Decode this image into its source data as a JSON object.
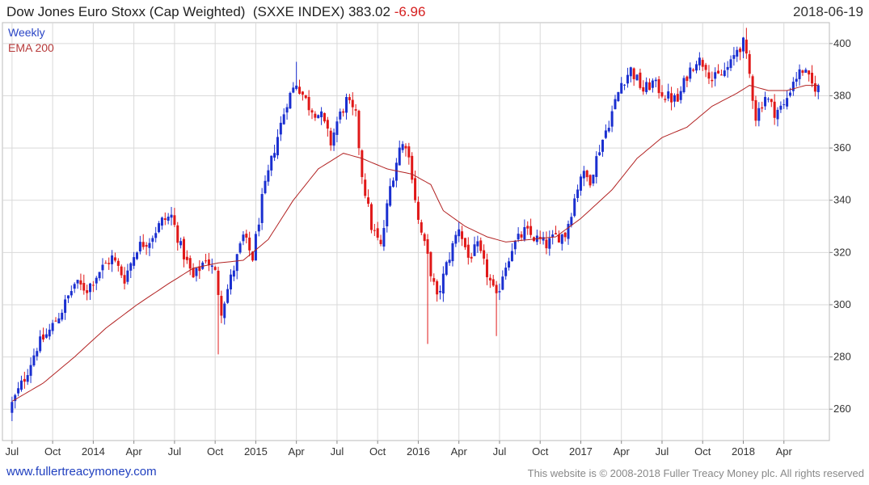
{
  "header": {
    "title": "Dow Jones Euro Stoxx (Cap Weighted)  (SXXE INDEX) 383.02",
    "change": "-6.96",
    "date": "2018-06-19"
  },
  "footer": {
    "site": "www.fullertreacymoney.com",
    "copyright": "This website is © 2008-2018 Fuller Treacy Money plc. All rights reserved"
  },
  "colors": {
    "up": "#1a2fd0",
    "down": "#e01818",
    "ema": "#b22222",
    "grid": "#d9d9d9"
  },
  "chart_data": {
    "type": "line",
    "title": "Dow Jones Euro Stoxx (Cap Weighted)  (SXXE INDEX) 383.02",
    "legend": [
      "Weekly",
      "EMA 200"
    ],
    "legend_position": "top-left",
    "ylim": [
      248,
      408
    ],
    "yticks": [
      260,
      280,
      300,
      320,
      340,
      360,
      380,
      400
    ],
    "grid": true,
    "xlabels": [
      {
        "label": "Jul",
        "week": 0
      },
      {
        "label": "Oct",
        "week": 13
      },
      {
        "label": "2014",
        "week": 26
      },
      {
        "label": "Apr",
        "week": 39
      },
      {
        "label": "Jul",
        "week": 52
      },
      {
        "label": "Oct",
        "week": 65
      },
      {
        "label": "2015",
        "week": 78
      },
      {
        "label": "Apr",
        "week": 91
      },
      {
        "label": "Jul",
        "week": 104
      },
      {
        "label": "Oct",
        "week": 117
      },
      {
        "label": "2016",
        "week": 130
      },
      {
        "label": "Apr",
        "week": 143
      },
      {
        "label": "Jul",
        "week": 156
      },
      {
        "label": "Oct",
        "week": 169
      },
      {
        "label": "2017",
        "week": 182
      },
      {
        "label": "Apr",
        "week": 195
      },
      {
        "label": "Jul",
        "week": 208
      },
      {
        "label": "Oct",
        "week": 221
      },
      {
        "label": "2018",
        "week": 234
      },
      {
        "label": "Apr",
        "week": 247
      }
    ],
    "x_range_weeks": [
      -1,
      260
    ],
    "close_anchors": [
      [
        0,
        262
      ],
      [
        4,
        272
      ],
      [
        8,
        284
      ],
      [
        12,
        290
      ],
      [
        16,
        298
      ],
      [
        20,
        308
      ],
      [
        24,
        306
      ],
      [
        28,
        313
      ],
      [
        32,
        318
      ],
      [
        36,
        310
      ],
      [
        40,
        322
      ],
      [
        44,
        325
      ],
      [
        48,
        332
      ],
      [
        51,
        334
      ],
      [
        54,
        322
      ],
      [
        58,
        310
      ],
      [
        62,
        318
      ],
      [
        65,
        312
      ],
      [
        67,
        298
      ],
      [
        70,
        310
      ],
      [
        74,
        326
      ],
      [
        77,
        318
      ],
      [
        80,
        340
      ],
      [
        84,
        360
      ],
      [
        88,
        378
      ],
      [
        91,
        385
      ],
      [
        95,
        376
      ],
      [
        99,
        372
      ],
      [
        102,
        362
      ],
      [
        104,
        370
      ],
      [
        107,
        378
      ],
      [
        110,
        372
      ],
      [
        112,
        350
      ],
      [
        115,
        330
      ],
      [
        118,
        322
      ],
      [
        121,
        345
      ],
      [
        124,
        360
      ],
      [
        126,
        362
      ],
      [
        128,
        350
      ],
      [
        130,
        332
      ],
      [
        133,
        318
      ],
      [
        136,
        302
      ],
      [
        139,
        315
      ],
      [
        143,
        330
      ],
      [
        146,
        318
      ],
      [
        149,
        322
      ],
      [
        152,
        312
      ],
      [
        155,
        302
      ],
      [
        157,
        312
      ],
      [
        160,
        322
      ],
      [
        164,
        328
      ],
      [
        168,
        325
      ],
      [
        171,
        323
      ],
      [
        174,
        326
      ],
      [
        177,
        327
      ],
      [
        179,
        336
      ],
      [
        182,
        350
      ],
      [
        185,
        348
      ],
      [
        188,
        360
      ],
      [
        191,
        370
      ],
      [
        195,
        385
      ],
      [
        198,
        390
      ],
      [
        202,
        382
      ],
      [
        205,
        385
      ],
      [
        209,
        380
      ],
      [
        213,
        378
      ],
      [
        216,
        388
      ],
      [
        219,
        394
      ],
      [
        222,
        392
      ],
      [
        224,
        386
      ],
      [
        227,
        388
      ],
      [
        230,
        392
      ],
      [
        232,
        398
      ],
      [
        234,
        400
      ],
      [
        236,
        388
      ],
      [
        238,
        372
      ],
      [
        241,
        380
      ],
      [
        244,
        374
      ],
      [
        247,
        376
      ],
      [
        250,
        386
      ],
      [
        253,
        390
      ],
      [
        256,
        384
      ],
      [
        258,
        383
      ]
    ],
    "ema_anchors": [
      [
        0,
        263
      ],
      [
        10,
        270
      ],
      [
        20,
        280
      ],
      [
        30,
        291
      ],
      [
        40,
        300
      ],
      [
        50,
        308
      ],
      [
        58,
        314
      ],
      [
        66,
        316
      ],
      [
        74,
        317
      ],
      [
        82,
        325
      ],
      [
        90,
        340
      ],
      [
        98,
        352
      ],
      [
        106,
        358
      ],
      [
        112,
        356
      ],
      [
        120,
        352
      ],
      [
        128,
        350
      ],
      [
        134,
        346
      ],
      [
        138,
        336
      ],
      [
        145,
        330
      ],
      [
        152,
        326
      ],
      [
        158,
        324
      ],
      [
        166,
        325
      ],
      [
        174,
        326
      ],
      [
        182,
        333
      ],
      [
        192,
        344
      ],
      [
        200,
        356
      ],
      [
        208,
        364
      ],
      [
        216,
        368
      ],
      [
        224,
        376
      ],
      [
        232,
        381
      ],
      [
        236,
        384
      ],
      [
        242,
        382
      ],
      [
        248,
        382
      ],
      [
        254,
        384
      ],
      [
        258,
        384
      ]
    ],
    "notable_lows": [
      {
        "week": 66,
        "value": 281
      },
      {
        "week": 133,
        "value": 285
      },
      {
        "week": 155,
        "value": 288
      }
    ],
    "notable_highs": [
      {
        "week": 91,
        "value": 393
      },
      {
        "week": 235,
        "value": 406
      }
    ]
  }
}
